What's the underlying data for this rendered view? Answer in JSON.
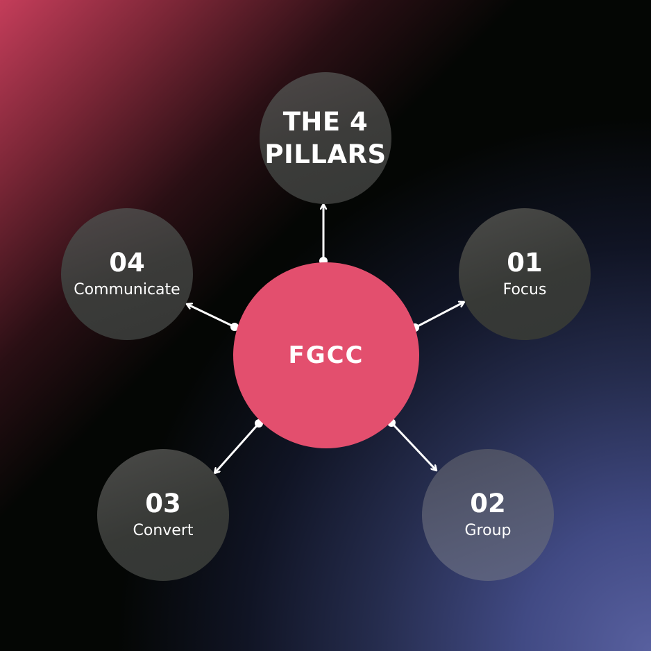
{
  "colors": {
    "center_fill": "#e34f6e",
    "node_fill": "#3a3c39",
    "group_node_fill": "#555a72",
    "background": "#040604",
    "top_left_glow": "#c43d5a",
    "bottom_right_glow": "#58609f",
    "connector": "#ffffff"
  },
  "title": {
    "line1": "THE 4",
    "line2": "PILLARS"
  },
  "center": {
    "label": "FGCC"
  },
  "pillars": [
    {
      "number": "01",
      "label": "Focus"
    },
    {
      "number": "02",
      "label": "Group"
    },
    {
      "number": "03",
      "label": "Convert"
    },
    {
      "number": "04",
      "label": "Communicate"
    }
  ]
}
